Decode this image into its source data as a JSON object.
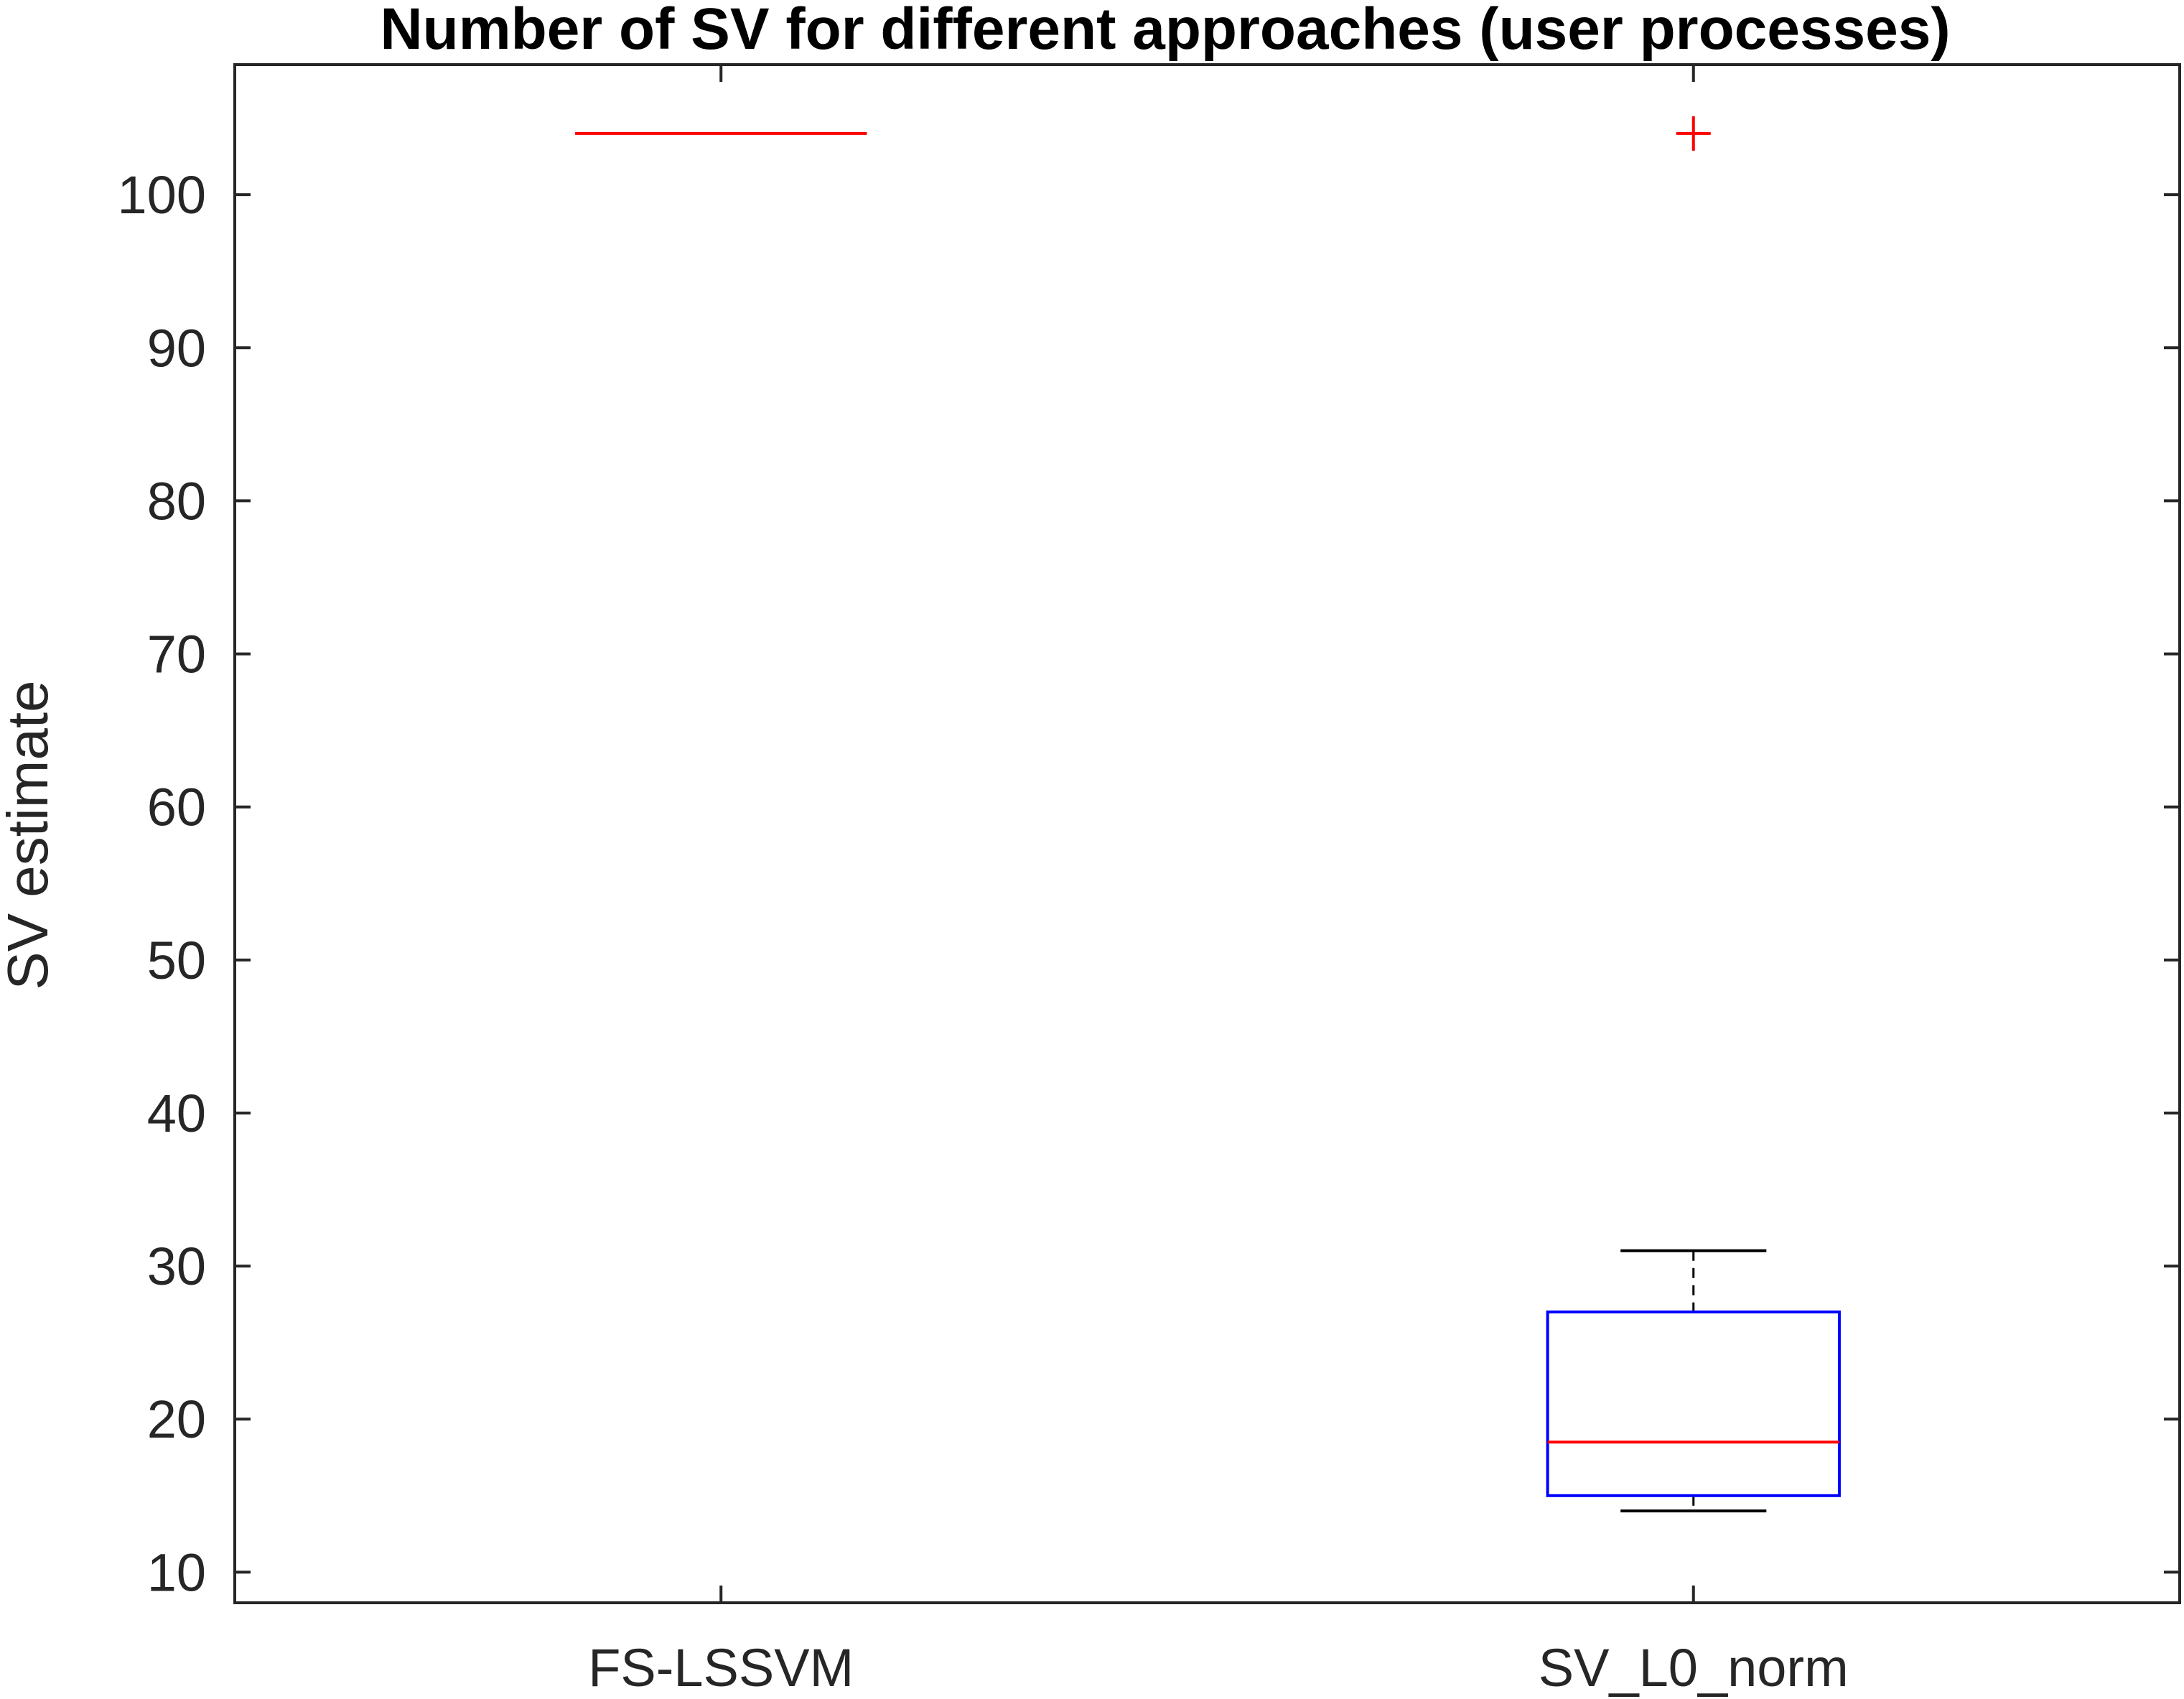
{
  "chart_data": {
    "type": "box",
    "title": "Number of SV for different approaches (user processes)",
    "xlabel": "",
    "ylabel": "SV estimate",
    "ylim": [
      8,
      108.5
    ],
    "yticks": [
      10,
      20,
      30,
      40,
      50,
      60,
      70,
      80,
      90,
      100
    ],
    "categories": [
      "FS-LSSVM",
      "SV_L0_norm"
    ],
    "boxes": [
      {
        "category": "FS-LSSVM",
        "whisker_low": 104,
        "q1": 104,
        "median": 104,
        "q3": 104,
        "whisker_high": 104,
        "outliers": []
      },
      {
        "category": "SV_L0_norm",
        "whisker_low": 14,
        "q1": 15,
        "median": 18.5,
        "q3": 27,
        "whisker_high": 31,
        "outliers": [
          104
        ]
      }
    ],
    "grid": false,
    "colors": {
      "box": "#0000ff",
      "median": "#ff0000",
      "whisker": "#000000",
      "outlier": "#ff0000",
      "axis": "#262626"
    }
  }
}
